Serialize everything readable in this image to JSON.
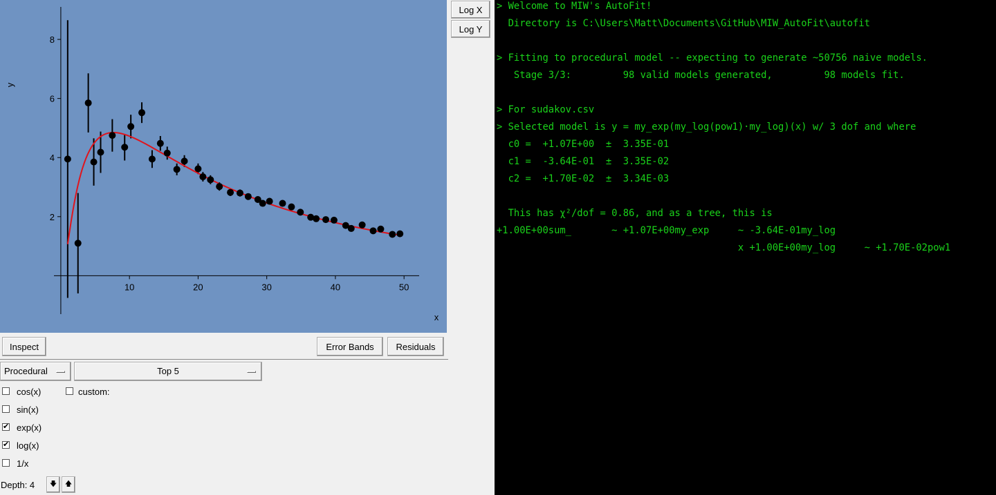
{
  "plot": {
    "x_label": "x",
    "y_label": "y",
    "log_x_label": "Log X",
    "log_y_label": "Log Y",
    "background": "#6f93c2",
    "fit_color": "#e0141c",
    "point_color": "#000000"
  },
  "chart_data": {
    "type": "scatter",
    "xlabel": "x",
    "ylabel": "y",
    "xlim": [
      -1.0,
      52.2
    ],
    "ylim": [
      -1.3,
      9.1
    ],
    "x_ticks": [
      10,
      20,
      30,
      40,
      50
    ],
    "y_ticks": [
      2,
      4,
      6,
      8
    ],
    "grid": false,
    "points": [
      {
        "x": 1.0,
        "y": 3.95,
        "err": 4.7
      },
      {
        "x": 2.5,
        "y": 1.1,
        "err": 1.7
      },
      {
        "x": 4.0,
        "y": 5.85,
        "err": 1.0
      },
      {
        "x": 4.8,
        "y": 3.85,
        "err": 0.8
      },
      {
        "x": 5.8,
        "y": 4.18,
        "err": 0.7
      },
      {
        "x": 7.5,
        "y": 4.75,
        "err": 0.55
      },
      {
        "x": 9.3,
        "y": 4.35,
        "err": 0.45
      },
      {
        "x": 10.2,
        "y": 5.05,
        "err": 0.4
      },
      {
        "x": 11.8,
        "y": 5.52,
        "err": 0.35
      },
      {
        "x": 13.3,
        "y": 3.95,
        "err": 0.3
      },
      {
        "x": 14.5,
        "y": 4.48,
        "err": 0.25
      },
      {
        "x": 15.5,
        "y": 4.15,
        "err": 0.22
      },
      {
        "x": 16.9,
        "y": 3.6,
        "err": 0.2
      },
      {
        "x": 18.0,
        "y": 3.88,
        "err": 0.2
      },
      {
        "x": 20.0,
        "y": 3.62,
        "err": 0.18
      },
      {
        "x": 20.7,
        "y": 3.35,
        "err": 0.16
      },
      {
        "x": 21.8,
        "y": 3.25,
        "err": 0.15
      },
      {
        "x": 23.1,
        "y": 3.02,
        "err": 0.14
      },
      {
        "x": 24.7,
        "y": 2.82,
        "err": 0.12
      },
      {
        "x": 26.1,
        "y": 2.8,
        "err": 0.12
      },
      {
        "x": 27.3,
        "y": 2.68,
        "err": 0.1
      },
      {
        "x": 28.7,
        "y": 2.58,
        "err": 0.1
      },
      {
        "x": 29.4,
        "y": 2.45,
        "err": 0.1
      },
      {
        "x": 30.4,
        "y": 2.52,
        "err": 0.09
      },
      {
        "x": 32.3,
        "y": 2.45,
        "err": 0.08
      },
      {
        "x": 33.6,
        "y": 2.33,
        "err": 0.08
      },
      {
        "x": 34.9,
        "y": 2.15,
        "err": 0.07
      },
      {
        "x": 36.4,
        "y": 1.98,
        "err": 0.07
      },
      {
        "x": 37.2,
        "y": 1.93,
        "err": 0.07
      },
      {
        "x": 38.6,
        "y": 1.9,
        "err": 0.06
      },
      {
        "x": 39.8,
        "y": 1.88,
        "err": 0.06
      },
      {
        "x": 41.5,
        "y": 1.7,
        "err": 0.06
      },
      {
        "x": 42.3,
        "y": 1.6,
        "err": 0.06
      },
      {
        "x": 43.9,
        "y": 1.72,
        "err": 0.05
      },
      {
        "x": 45.5,
        "y": 1.52,
        "err": 0.05
      },
      {
        "x": 46.6,
        "y": 1.58,
        "err": 0.05
      },
      {
        "x": 48.3,
        "y": 1.4,
        "err": 0.05
      },
      {
        "x": 49.4,
        "y": 1.42,
        "err": 0.05
      }
    ],
    "fit": {
      "c0": 1.07,
      "c1": -0.364,
      "c2": 0.017,
      "x_start": 1.0,
      "x_end": 49.4
    }
  },
  "buttons": {
    "inspect": "Inspect",
    "error_bands": "Error Bands",
    "residuals": "Residuals"
  },
  "model_type": "Procedural",
  "top_n": "Top 5",
  "options": [
    {
      "label": "cos(x)",
      "checked": false
    },
    {
      "label": "sin(x)",
      "checked": false
    },
    {
      "label": "exp(x)",
      "checked": true
    },
    {
      "label": "log(x)",
      "checked": true
    },
    {
      "label": "1/x",
      "checked": false
    }
  ],
  "custom": {
    "label": "custom:",
    "checked": false
  },
  "depth": {
    "label": "Depth: 4",
    "down_icon": "arrow-down-icon",
    "up_icon": "arrow-up-icon"
  },
  "terminal": {
    "color": "#1ad21a",
    "lines": [
      "> Welcome to MIW's AutoFit!",
      "  Directory is C:\\Users\\Matt\\Documents\\GitHub\\MIW_AutoFit\\autofit",
      "",
      "> Fitting to procedural model -- expecting to generate ~50756 naive models.",
      "   Stage 3/3:         98 valid models generated,         98 models fit.",
      "",
      "> For sudakov.csv",
      "> Selected model is y = my_exp(my_log(pow1)·my_log)(x) w/ 3 dof and where",
      "  c0 =  +1.07E+00  ±  3.35E-01",
      "  c1 =  -3.64E-01  ±  3.35E-02",
      "  c2 =  +1.70E-02  ±  3.34E-03",
      "",
      "  This has χ²/dof = 0.86, and as a tree, this is",
      "+1.00E+00sum_       ~ +1.07E+00my_exp     ~ -3.64E-01my_log",
      "                                          x +1.00E+00my_log     ~ +1.70E-02pow1"
    ]
  }
}
